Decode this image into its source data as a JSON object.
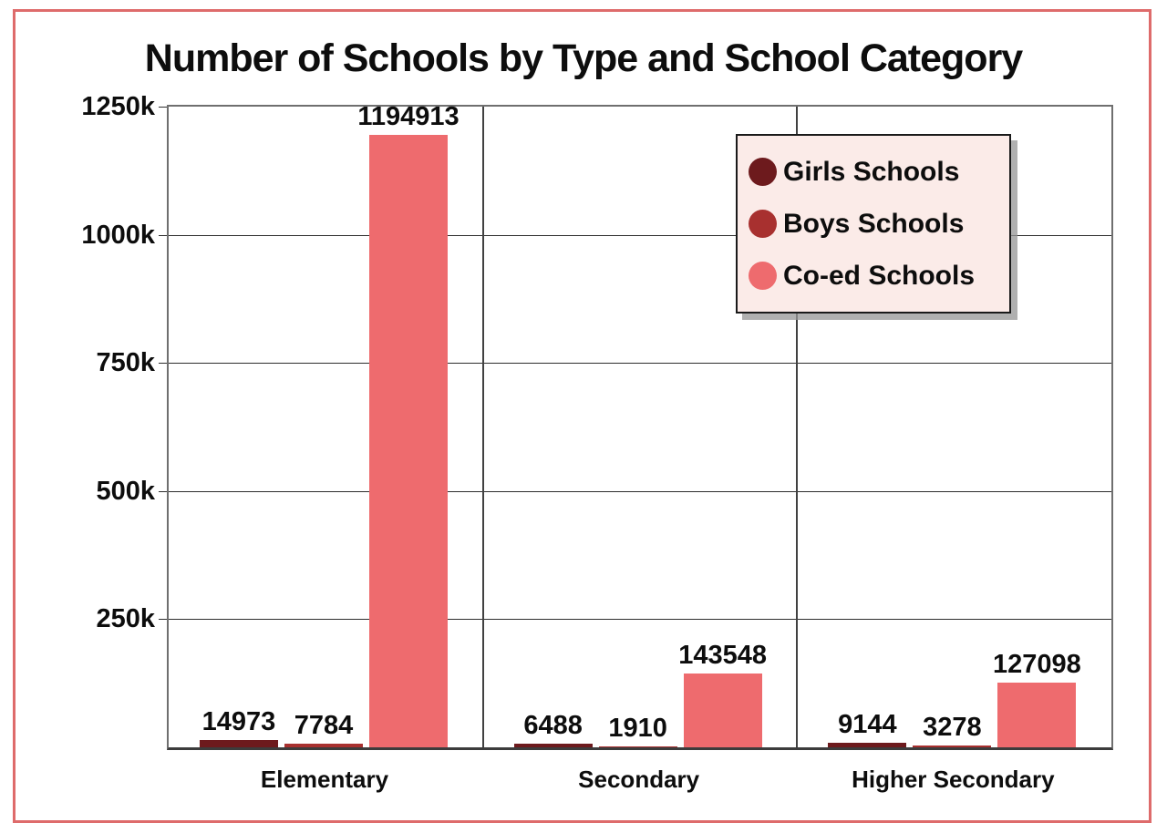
{
  "title": "Number of Schools by Type and School Category",
  "colors": {
    "outer_border": "#de6b6b",
    "legend_background": "#fbebe8",
    "grid": "#2e2e2e",
    "axis_border": "#6f6f6f",
    "text": "#0d0d0d"
  },
  "chart_data": {
    "type": "bar",
    "title": "Number of Schools by Type and School Category",
    "categories": [
      "Elementary",
      "Secondary",
      "Higher Secondary"
    ],
    "series": [
      {
        "name": "Girls Schools",
        "color": "#6d1a1d",
        "values": [
          14973,
          6488,
          9144
        ]
      },
      {
        "name": "Boys Schools",
        "color": "#a8302f",
        "values": [
          7784,
          1910,
          3278
        ]
      },
      {
        "name": "Co-ed Schools",
        "color": "#ee6b6e",
        "values": [
          1194913,
          143548,
          127098
        ]
      }
    ],
    "xlabel": "",
    "ylabel": "",
    "ylim": [
      0,
      1250000
    ],
    "yticks": [
      {
        "value": 1250000,
        "label": "1250k"
      },
      {
        "value": 1000000,
        "label": "1000k"
      },
      {
        "value": 750000,
        "label": "750k"
      },
      {
        "value": 500000,
        "label": "500k"
      },
      {
        "value": 250000,
        "label": "250k"
      }
    ],
    "grid": true,
    "bar_labels": true,
    "legend_position": "top-right"
  }
}
